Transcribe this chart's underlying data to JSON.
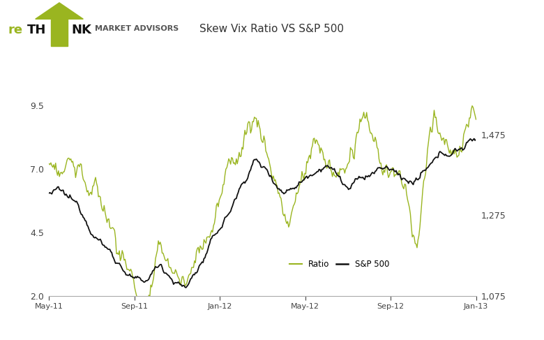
{
  "title": "Skew Vix Ratio VS S&P 500",
  "title_fontsize": 11,
  "background_color": "#ffffff",
  "ratio_color": "#9ab520",
  "sp500_color": "#111111",
  "ratio_ylim": [
    2.0,
    11.5
  ],
  "sp500_ylim": [
    1075,
    1675
  ],
  "ratio_yticks": [
    2.0,
    4.5,
    7.0,
    9.5
  ],
  "sp500_yticks": [
    1075,
    1275,
    1475
  ],
  "xlabel_ticks": [
    "May-11",
    "Sep-11",
    "Jan-12",
    "May-12",
    "Sep-12",
    "Jan-13"
  ],
  "legend_labels": [
    "Ratio",
    "S&P 500"
  ],
  "header_text": "MARKET ADVISORS"
}
